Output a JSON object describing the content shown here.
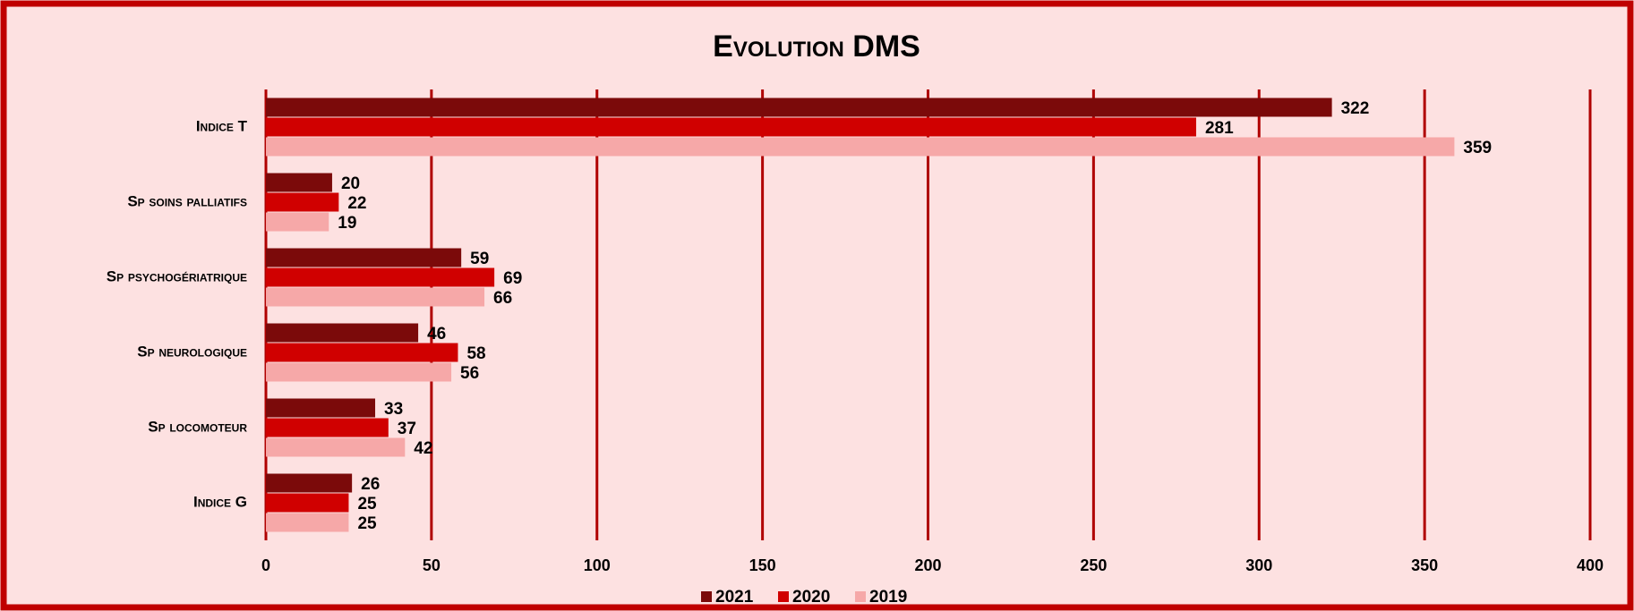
{
  "chart_data": {
    "type": "bar",
    "orientation": "horizontal",
    "title": "Evolution DMS",
    "categories": [
      "Indice T",
      "Sp soins palliatifs",
      "Sp psychogériatrique",
      "Sp neurologique",
      "Sp locomoteur",
      "Indice G"
    ],
    "series": [
      {
        "name": "2021",
        "color": "#7b0a0a",
        "values": [
          322,
          20,
          59,
          46,
          33,
          26
        ]
      },
      {
        "name": "2020",
        "color": "#d00000",
        "values": [
          281,
          22,
          69,
          58,
          37,
          25
        ]
      },
      {
        "name": "2019",
        "color": "#f6a8a8",
        "values": [
          359,
          19,
          66,
          56,
          42,
          25
        ]
      }
    ],
    "xlim": [
      0,
      400
    ],
    "xticks": [
      0,
      50,
      100,
      150,
      200,
      250,
      300,
      350,
      400
    ],
    "grid": true,
    "legend": "bottom"
  }
}
